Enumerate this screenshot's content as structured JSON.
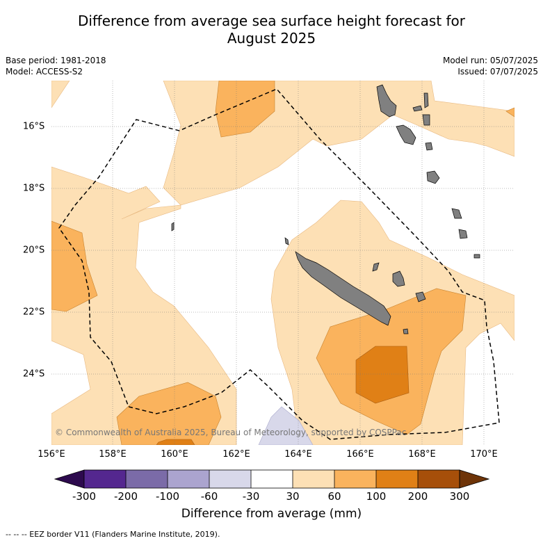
{
  "title_line1": "Difference from average sea surface height forecast for",
  "title_line2": "August 2025",
  "base_period": "Base period: 1981-2018",
  "model": "Model: ACCESS-S2",
  "model_run": "Model run: 05/07/2025",
  "issued": "Issued: 07/07/2025",
  "copyright": "© Commonwealth of Australia 2025, Bureau of Meteorology, supported by COSPPac",
  "footnote": "--  --  -- EEZ border V11 (Flanders Marine Institute, 2019).",
  "lon_labels": [
    "156°E",
    "158°E",
    "160°E",
    "162°E",
    "164°E",
    "166°E",
    "168°E",
    "170°E"
  ],
  "lat_labels": [
    "16°S",
    "18°S",
    "20°S",
    "22°S",
    "24°S"
  ],
  "colorbar": {
    "label": "Difference from average (mm)",
    "ticks": [
      "-300",
      "-200",
      "-100",
      "-60",
      "-30",
      "30",
      "60",
      "100",
      "200",
      "300"
    ],
    "colors": [
      "#2d0a4e",
      "#54278f",
      "#7b6ba8",
      "#aba4cf",
      "#d8d8ea",
      "#ffffff",
      "#fde0b5",
      "#fab35d",
      "#e08016",
      "#a64f0a",
      "#6e3408"
    ]
  },
  "colors": {
    "level_30_60": "#fde0b5",
    "level_60_100": "#fab35d",
    "level_100_200": "#e08016",
    "level_200_300": "#a64f0a",
    "level_neg30_neg60": "#d8d8ea",
    "land": "#808080"
  }
}
